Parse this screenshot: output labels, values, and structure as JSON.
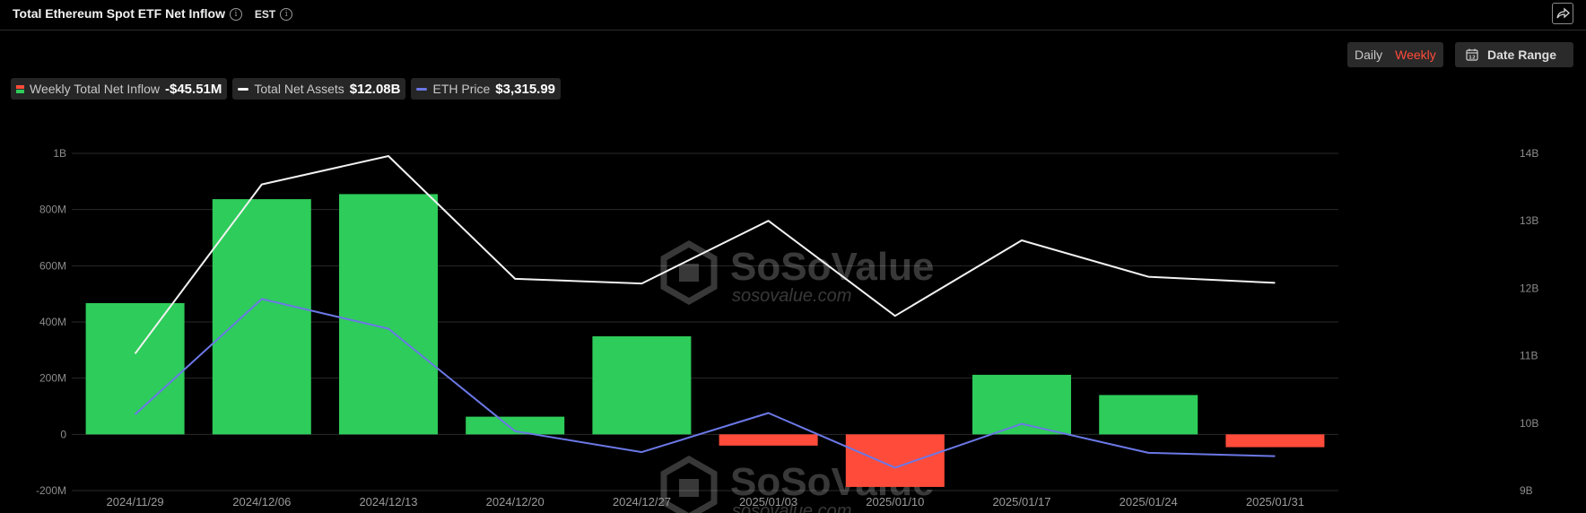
{
  "header": {
    "title": "Total Ethereum Spot ETF Net Inflow",
    "timezone": "EST"
  },
  "controls": {
    "daily_label": "Daily",
    "weekly_label": "Weekly",
    "active": "Weekly",
    "date_range_label": "Date Range"
  },
  "legend": {
    "inflow_label": "Weekly Total Net Inflow",
    "inflow_value": "-$45.51M",
    "assets_label": "Total Net Assets",
    "assets_value": "$12.08B",
    "price_label": "ETH Price",
    "price_value": "$3,315.99"
  },
  "watermark": {
    "brand": "SoSoValue",
    "url": "sosovalue.com"
  },
  "colors": {
    "positive": "#2ecc5a",
    "negative": "#ff4b3a",
    "assets_line": "#f2f2f2",
    "price_line": "#6b78e6",
    "grid": "#2a2a2a",
    "axis_text": "#8c8c8c"
  },
  "chart_data": {
    "type": "bar",
    "categories": [
      "2024/11/29",
      "2024/12/06",
      "2024/12/13",
      "2024/12/20",
      "2024/12/27",
      "2025/01/03",
      "2025/01/10",
      "2025/01/17",
      "2025/01/24",
      "2025/01/31"
    ],
    "left_axis": {
      "ticks": [
        "-200M",
        "0",
        "200M",
        "400M",
        "600M",
        "800M",
        "1B"
      ],
      "tick_values": [
        -200000000,
        0,
        200000000,
        400000000,
        600000000,
        800000000,
        1000000000
      ],
      "ylim": [
        -200000000,
        1000000000
      ]
    },
    "right_axis": {
      "ticks": [
        "9B",
        "10B",
        "11B",
        "12B",
        "13B",
        "14B"
      ],
      "tick_values": [
        9000000000,
        10000000000,
        11000000000,
        12000000000,
        13000000000,
        14000000000
      ],
      "ylim": [
        9000000000,
        14000000000
      ]
    },
    "series": [
      {
        "type": "bar",
        "axis": "left",
        "values": [
          467000000,
          837000000,
          855000000,
          63000000,
          349000000,
          -40000000,
          -187000000,
          212000000,
          140000000,
          -45510000
        ]
      },
      {
        "type": "line",
        "axis": "right",
        "values": [
          11030000000,
          13540000000,
          13960000000,
          12140000000,
          12070000000,
          13000000000,
          11590000000,
          12710000000,
          12170000000,
          12080000000
        ]
      },
      {
        "type": "line",
        "axis": "right",
        "values": [
          10130000000,
          11840000000,
          11400000000,
          9880000000,
          9570000000,
          10150000000,
          9340000000,
          9990000000,
          9560000000,
          9510000000
        ]
      }
    ]
  }
}
